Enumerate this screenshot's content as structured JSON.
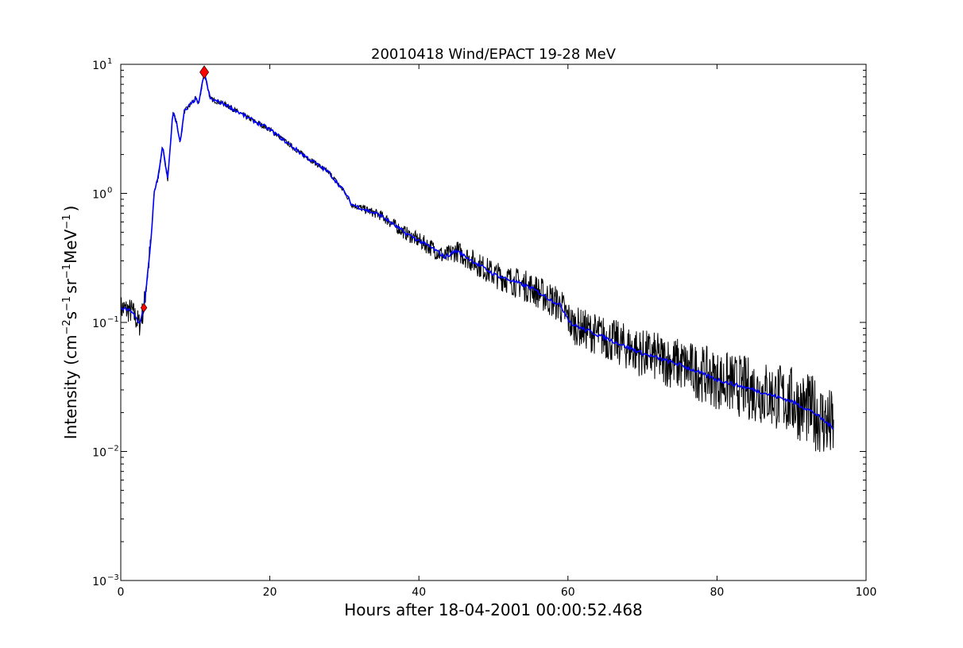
{
  "chart_data": {
    "type": "line",
    "title": "20010418 Wind/EPACT 19-28 MeV",
    "xlabel": "Hours after 18-04-2001 00:00:52.468",
    "ylabel_parts": {
      "pre": "Intensity (cm",
      "e1": "−2",
      "s": "s",
      "e2": "−1",
      "sr": "sr",
      "e3": "−1",
      "mev": "MeV",
      "e4": "−1",
      "post": ")"
    },
    "xlim": [
      0,
      100
    ],
    "ylim": [
      0.001,
      10
    ],
    "yscale": "log",
    "grid": false,
    "xticks": [
      0,
      20,
      40,
      60,
      80,
      100
    ],
    "xtick_labels": [
      "0",
      "20",
      "40",
      "60",
      "80",
      "100"
    ],
    "yticks": [
      0.001,
      0.01,
      0.1,
      1,
      10
    ],
    "ytick_labels": [
      {
        "base": "10",
        "exp": "−3"
      },
      {
        "base": "10",
        "exp": "−2"
      },
      {
        "base": "10",
        "exp": "−1"
      },
      {
        "base": "10",
        "exp": "0"
      },
      {
        "base": "10",
        "exp": "1"
      }
    ],
    "series": [
      {
        "role": "raw",
        "color": "#000000",
        "x": [
          0,
          1.5,
          2.5,
          3.1,
          4,
          4.5,
          5,
          5.6,
          6.3,
          7,
          7.5,
          8,
          8.5,
          9,
          10,
          10.5,
          11.2,
          12,
          14,
          17,
          20,
          24,
          28,
          30,
          31,
          35,
          38,
          42,
          43.5,
          45,
          50,
          55,
          59,
          60.5,
          65,
          70,
          75,
          80,
          85,
          90,
          93,
          95.7
        ],
        "y": [
          0.129,
          0.122,
          0.096,
          0.13,
          0.39,
          1.05,
          1.3,
          2.3,
          1.3,
          4.3,
          3.5,
          2.45,
          4.3,
          4.6,
          5.4,
          5.0,
          8.7,
          5.4,
          4.9,
          3.87,
          3.13,
          2.08,
          1.44,
          1.03,
          0.82,
          0.67,
          0.5,
          0.37,
          0.32,
          0.36,
          0.237,
          0.186,
          0.135,
          0.097,
          0.076,
          0.0575,
          0.047,
          0.036,
          0.03,
          0.0245,
          0.02,
          0.015
        ]
      },
      {
        "role": "smoothed",
        "color": "#0000ff",
        "x": [
          0,
          1.5,
          2.5,
          3.1,
          4,
          4.5,
          5,
          5.6,
          6.3,
          7,
          7.5,
          8,
          8.5,
          9,
          10,
          10.5,
          11.2,
          12,
          14,
          17,
          20,
          24,
          28,
          30,
          31,
          35,
          38,
          42,
          43.5,
          45,
          50,
          55,
          59,
          60.5,
          65,
          70,
          75,
          80,
          85,
          90,
          93,
          95.7
        ],
        "y": [
          0.129,
          0.122,
          0.096,
          0.13,
          0.39,
          1.05,
          1.3,
          2.3,
          1.3,
          4.3,
          3.5,
          2.45,
          4.3,
          4.6,
          5.4,
          5.0,
          8.7,
          5.4,
          4.9,
          3.87,
          3.13,
          2.08,
          1.44,
          1.03,
          0.82,
          0.67,
          0.5,
          0.37,
          0.32,
          0.36,
          0.237,
          0.186,
          0.135,
          0.097,
          0.076,
          0.0575,
          0.047,
          0.036,
          0.03,
          0.0245,
          0.02,
          0.015
        ]
      }
    ],
    "markers": [
      {
        "x": 3.1,
        "y": 0.13,
        "shape": "diamond",
        "color": "#ff0000",
        "size": "small"
      },
      {
        "x": 11.2,
        "y": 8.7,
        "shape": "diamond",
        "color": "#ff0000",
        "size": "large"
      }
    ]
  }
}
